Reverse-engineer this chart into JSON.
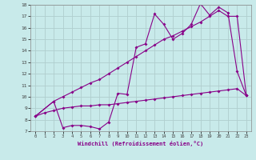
{
  "xlabel": "Windchill (Refroidissement éolien,°C)",
  "bg_color": "#c8eaea",
  "grid_color": "#b0cece",
  "line_color": "#880088",
  "xlim": [
    -0.5,
    23.5
  ],
  "ylim": [
    7,
    18
  ],
  "xticks": [
    0,
    1,
    2,
    3,
    4,
    5,
    6,
    7,
    8,
    9,
    10,
    11,
    12,
    13,
    14,
    15,
    16,
    17,
    18,
    19,
    20,
    21,
    22,
    23
  ],
  "yticks": [
    7,
    8,
    9,
    10,
    11,
    12,
    13,
    14,
    15,
    16,
    17,
    18
  ],
  "line1_x": [
    0,
    1,
    2,
    3,
    4,
    5,
    6,
    7,
    8,
    9,
    10,
    11,
    12,
    13,
    14,
    15,
    16,
    17,
    18,
    19,
    20,
    21,
    22,
    23
  ],
  "line1_y": [
    8.3,
    8.6,
    8.8,
    9.0,
    9.1,
    9.2,
    9.2,
    9.3,
    9.3,
    9.4,
    9.5,
    9.6,
    9.7,
    9.8,
    9.9,
    10.0,
    10.1,
    10.2,
    10.3,
    10.4,
    10.5,
    10.6,
    10.7,
    10.1
  ],
  "line2_x": [
    0,
    2,
    3,
    4,
    5,
    6,
    7,
    8,
    9,
    10,
    11,
    12,
    13,
    14,
    15,
    16,
    17,
    18,
    19,
    20,
    21,
    22,
    23
  ],
  "line2_y": [
    8.3,
    9.6,
    10.0,
    10.4,
    10.8,
    11.2,
    11.5,
    12.0,
    12.5,
    13.0,
    13.5,
    14.0,
    14.5,
    15.0,
    15.3,
    15.7,
    16.1,
    16.5,
    17.0,
    17.5,
    17.0,
    17.0,
    10.1
  ],
  "line3_x": [
    0,
    2,
    3,
    4,
    5,
    6,
    7,
    8,
    9,
    10,
    11,
    12,
    13,
    14,
    15,
    16,
    17,
    18,
    19,
    20,
    21,
    22,
    23
  ],
  "line3_y": [
    8.3,
    9.6,
    7.3,
    7.5,
    7.5,
    7.4,
    7.2,
    7.8,
    10.3,
    10.2,
    14.3,
    14.6,
    17.2,
    16.3,
    15.0,
    15.5,
    16.3,
    18.1,
    17.1,
    17.8,
    17.3,
    12.2,
    10.1
  ]
}
